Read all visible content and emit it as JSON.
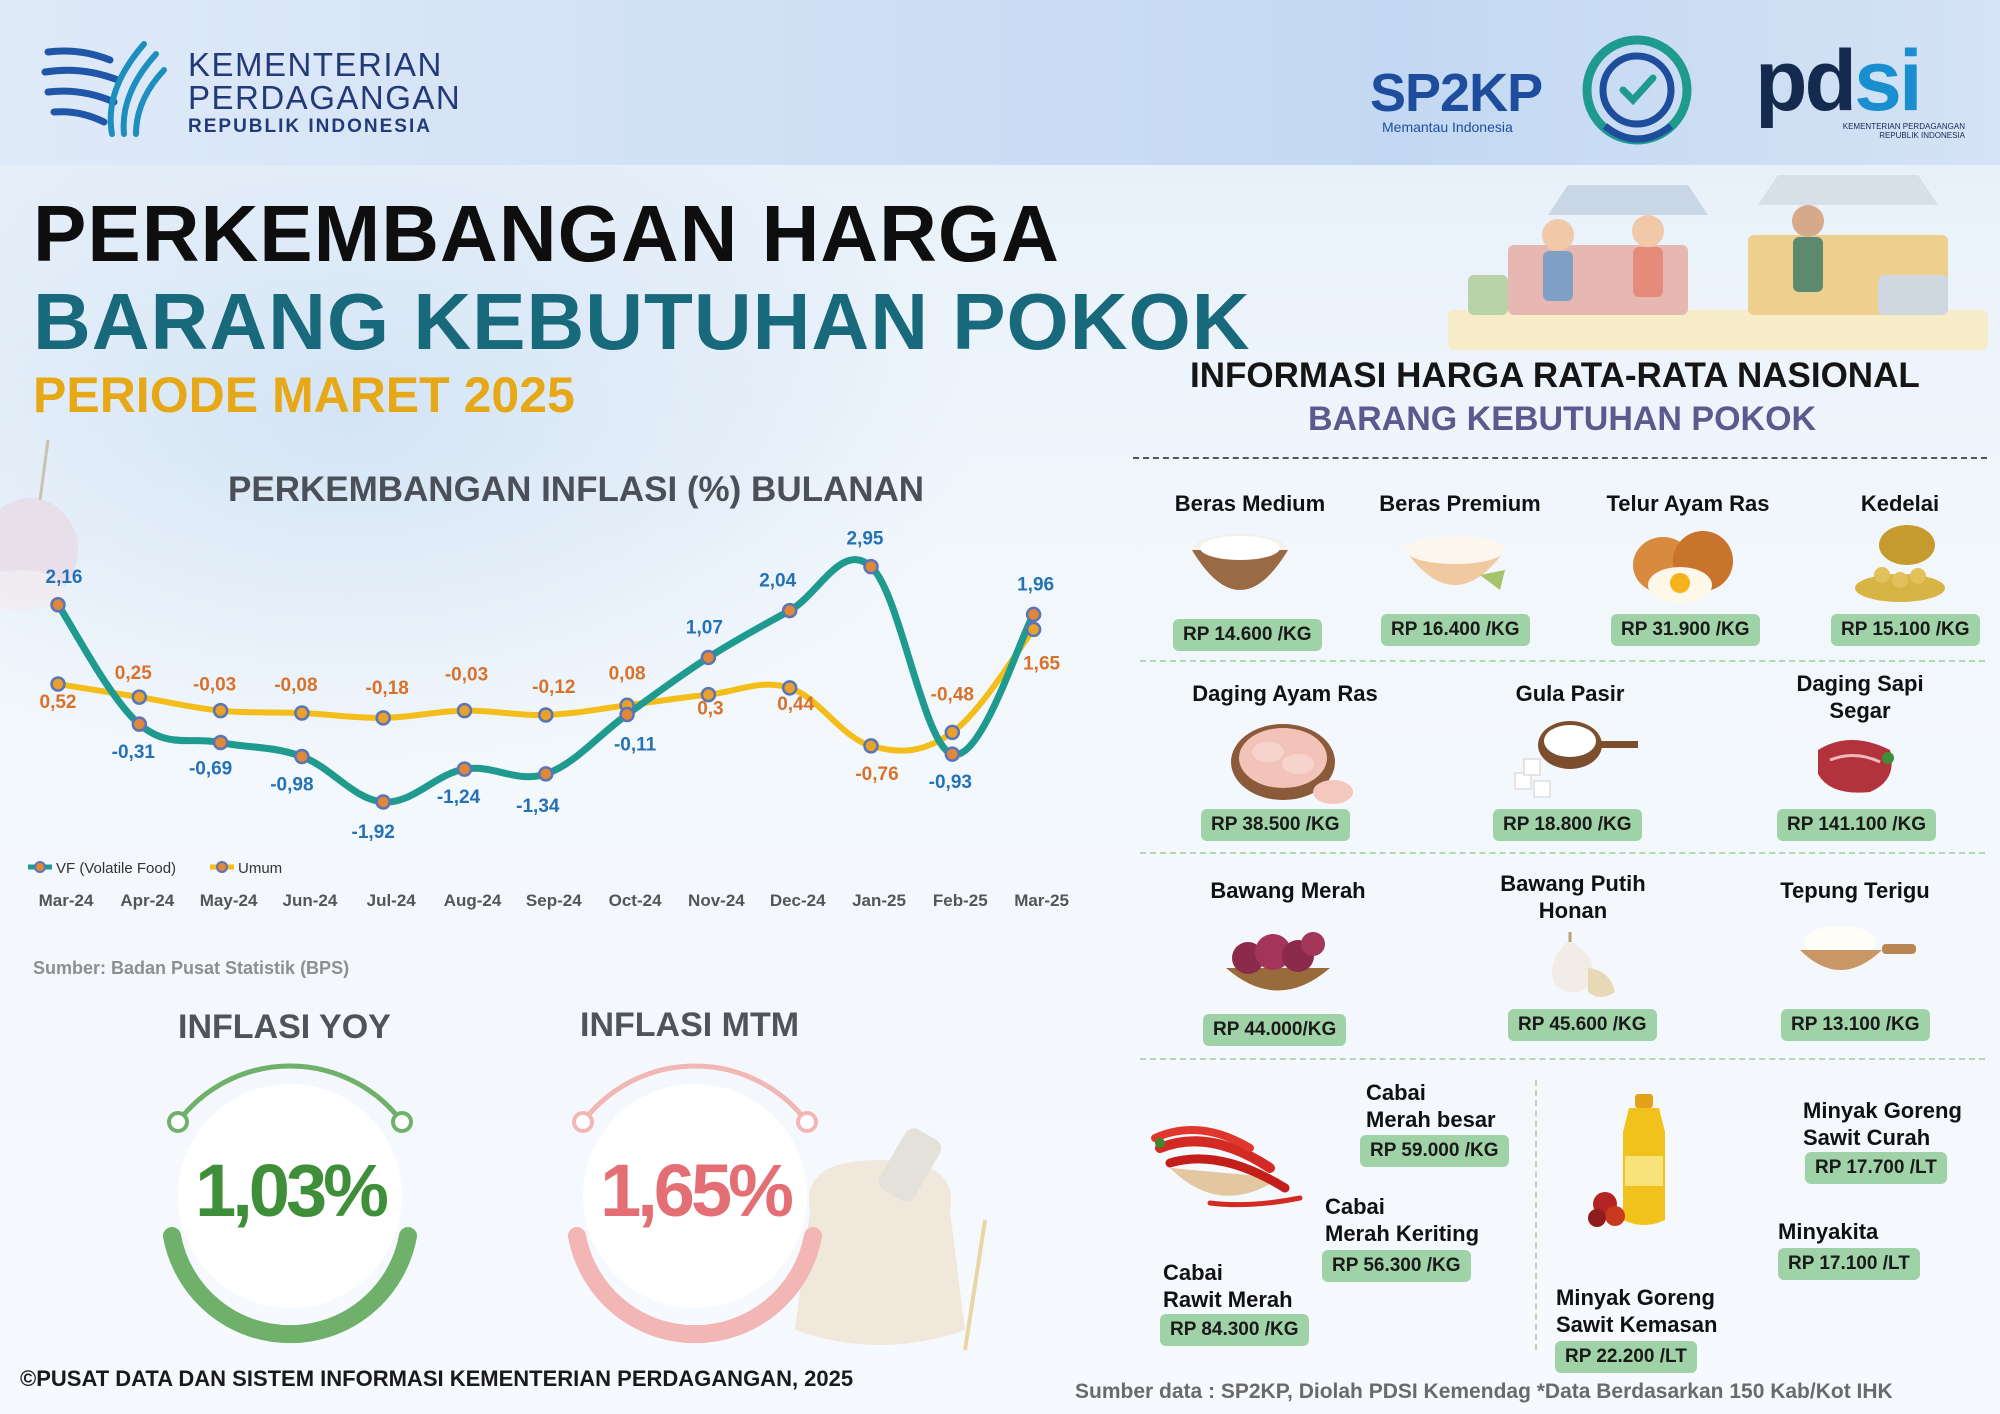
{
  "header": {
    "ministry_line1": "KEMENTERIAN",
    "ministry_line2": "PERDAGANGAN",
    "ministry_line3": "REPUBLIK INDONESIA",
    "sp2kp": "SP2KP",
    "sp2kp_tagline": "Memantau Indonesia",
    "pdsi_a": "pd",
    "pdsi_b": "si",
    "pdsi_sub": "KEMENTERIAN PERDAGANGAN REPUBLIK INDONESIA"
  },
  "title": {
    "line1": "PERKEMBANGAN HARGA",
    "line2": "BARANG KEBUTUHAN POKOK",
    "period": "PERIODE MARET 2025"
  },
  "chart_data": {
    "type": "line",
    "title": "PERKEMBANGAN INFLASI (%) BULANAN",
    "categories": [
      "Mar-24",
      "Apr-24",
      "May-24",
      "Jun-24",
      "Jul-24",
      "Aug-24",
      "Sep-24",
      "Oct-24",
      "Nov-24",
      "Dec-24",
      "Jan-25",
      "Feb-25",
      "Mar-25"
    ],
    "series": [
      {
        "name": "VF (Volatile Food)",
        "color": "#1f9a8e",
        "values": [
          2.16,
          -0.31,
          -0.69,
          -0.98,
          -1.92,
          -1.24,
          -1.34,
          -0.11,
          1.07,
          2.04,
          2.95,
          -0.93,
          1.96
        ],
        "labels": [
          "2,16",
          "-0,31",
          "-0,69",
          "-0,98",
          "-1,92",
          "-1,24",
          "-1,34",
          "-0,11",
          "1,07",
          "2,04",
          "2,95",
          "-0,93",
          "1,96"
        ],
        "label_color": "#2472b5"
      },
      {
        "name": "Umum",
        "color": "#f3bd1a",
        "values": [
          0.52,
          0.25,
          -0.03,
          -0.08,
          -0.18,
          -0.03,
          -0.12,
          0.08,
          0.3,
          0.44,
          -0.76,
          -0.48,
          1.65
        ],
        "labels": [
          "0,52",
          "0,25",
          "-0,03",
          "-0,08",
          "-0,18",
          "-0,03",
          "-0,12",
          "0,08",
          "0,3",
          "0,44",
          "-0,76",
          "-0,48",
          "1,65"
        ],
        "label_color": "#d8712a"
      }
    ],
    "ylim": [
      -2.5,
      3.5
    ],
    "grid": false,
    "legend": "bottom-left"
  },
  "source_bps": "Sumber: Badan Pusat Statistik (BPS)",
  "inflasi": {
    "yoy_label": "INFLASI YOY",
    "yoy_value": "1,03%",
    "yoy_color": "#3f8f3a",
    "mtm_label": "INFLASI MTM",
    "mtm_value": "1,65%",
    "mtm_color": "#e36f74"
  },
  "info": {
    "title": "INFORMASI HARGA RATA-RATA NASIONAL",
    "subtitle": "BARANG KEBUTUHAN POKOK"
  },
  "items": {
    "beras_medium": {
      "name": "Beras Medium",
      "price": "RP 14.600 /KG"
    },
    "beras_premium": {
      "name": "Beras Premium",
      "price": "RP 16.400 /KG"
    },
    "telur": {
      "name": "Telur Ayam Ras",
      "price": "RP 31.900 /KG"
    },
    "kedelai": {
      "name": "Kedelai",
      "price": "RP 15.100 /KG"
    },
    "daging_ayam": {
      "name": "Daging Ayam Ras",
      "price": "RP 38.500 /KG"
    },
    "gula": {
      "name": "Gula Pasir",
      "price": "RP 18.800 /KG"
    },
    "daging_sapi": {
      "name_1": "Daging Sapi",
      "name_2": "Segar",
      "price": "RP 141.100 /KG"
    },
    "bawang_merah": {
      "name": "Bawang Merah",
      "price": "RP 44.000/KG"
    },
    "bawang_putih": {
      "name_1": "Bawang Putih",
      "name_2": "Honan",
      "price": "RP 45.600 /KG"
    },
    "tepung": {
      "name": "Tepung Terigu",
      "price": "RP 13.100 /KG"
    },
    "cabai_besar": {
      "name_1": "Cabai",
      "name_2": "Merah besar",
      "price": "RP 59.000 /KG"
    },
    "cabai_keriting": {
      "name_1": "Cabai",
      "name_2": "Merah Keriting",
      "price": "RP 56.300 /KG"
    },
    "cabai_rawit": {
      "name_1": "Cabai",
      "name_2": "Rawit Merah",
      "price": "RP 84.300 /KG"
    },
    "minyak_curah": {
      "name_1": "Minyak Goreng",
      "name_2": "Sawit Curah",
      "price": "RP 17.700 /LT"
    },
    "minyakita": {
      "name": "Minyakita",
      "price": "RP 17.100 /LT"
    },
    "minyak_kemasan": {
      "name_1": "Minyak Goreng",
      "name_2": "Sawit Kemasan",
      "price": "RP 22.200 /LT"
    }
  },
  "footer": {
    "copyright": "©PUSAT DATA DAN SISTEM INFORMASI KEMENTERIAN PERDAGANGAN, 2025",
    "source": "Sumber data : SP2KP, Diolah PDSI Kemendag  *Data Berdasarkan 150 Kab/Kot IHK"
  }
}
